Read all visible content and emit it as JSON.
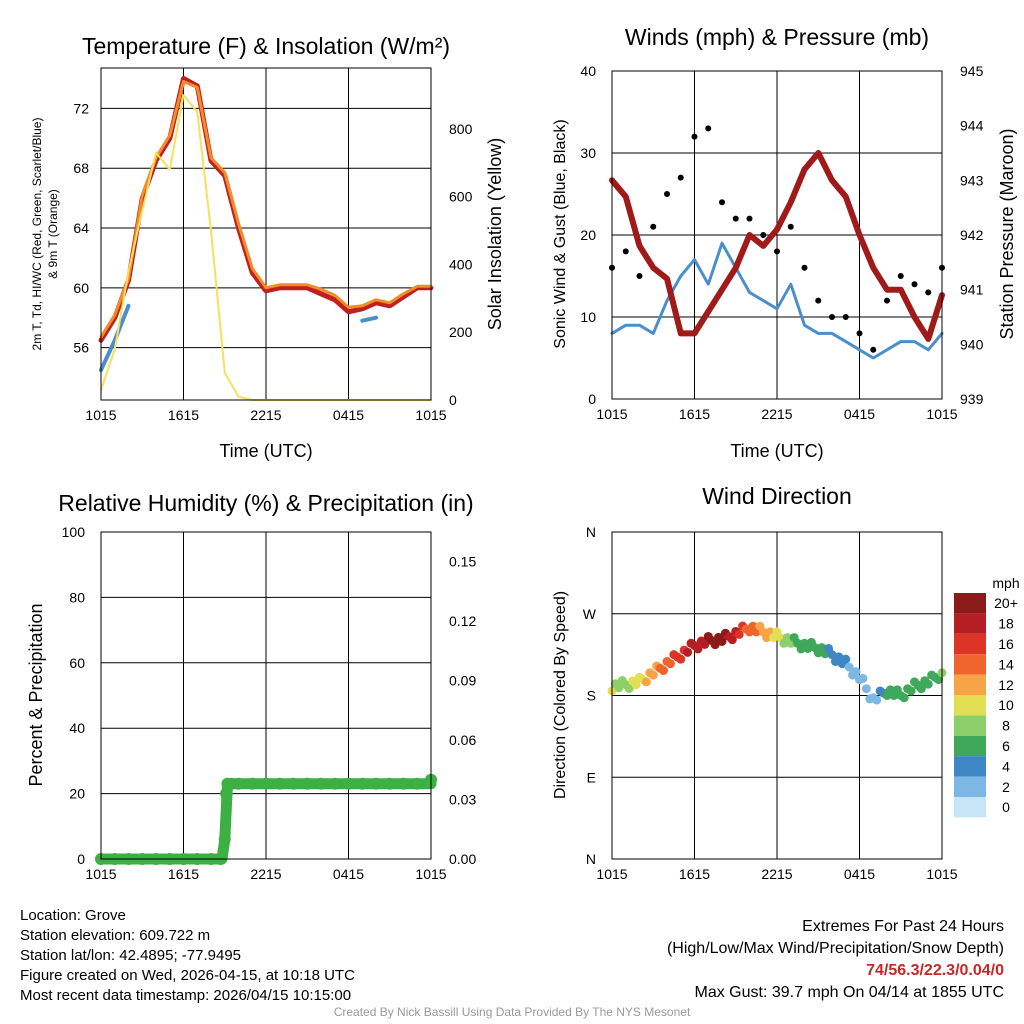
{
  "chart_data": [
    {
      "type": "line",
      "title": "Temperature (F) & Insolation (W/m²)",
      "xlabel": "Time (UTC)",
      "ylabel": "2m T, Td, HI/WC (Red, Green, Scarlet/Blue) & 9m T (Orange)",
      "ylabel_line1": "2m T, Td, HI/WC (Red, Green, Scarlet/Blue)",
      "ylabel_line2": "& 9m T (Orange)",
      "y2label": "Solar Insolation (Yellow)",
      "xticks": [
        "1015",
        "1615",
        "2215",
        "0415",
        "1015"
      ],
      "ylim": [
        52.5,
        74.7
      ],
      "yticks": [
        56,
        60,
        64,
        68,
        72
      ],
      "y2lim": [
        0,
        980
      ],
      "y2ticks": [
        0,
        200,
        400,
        600,
        800
      ],
      "x_hours": [
        0,
        1,
        2,
        3,
        4,
        5,
        6,
        7,
        8,
        9,
        10,
        11,
        12,
        13,
        14,
        15,
        16,
        17,
        18,
        19,
        20,
        21,
        22,
        23,
        24
      ],
      "series": [
        {
          "name": "2m Temperature",
          "color": "#c0201f",
          "values": [
            56.5,
            58.0,
            60.5,
            66.0,
            68.5,
            70.0,
            74.0,
            73.5,
            68.5,
            67.5,
            64.0,
            61.0,
            59.8,
            60.0,
            60.0,
            60.0,
            59.6,
            59.2,
            58.4,
            58.6,
            59.0,
            58.8,
            59.4,
            60.0,
            60.0
          ]
        },
        {
          "name": "9m Temperature",
          "color": "#f28c28",
          "values": [
            56.7,
            58.2,
            60.6,
            66.2,
            68.7,
            70.2,
            73.8,
            73.4,
            68.7,
            67.7,
            64.3,
            61.3,
            60.0,
            60.2,
            60.2,
            60.2,
            59.9,
            59.5,
            58.7,
            58.8,
            59.2,
            59.0,
            59.6,
            60.1,
            60.1
          ]
        },
        {
          "name": "Wind Chill",
          "color": "#4a8fcb",
          "values": [
            54.5,
            56.5,
            58.8,
            null,
            null,
            null,
            null,
            null,
            null,
            null,
            null,
            null,
            null,
            null,
            null,
            null,
            null,
            null,
            null,
            57.8,
            58.0,
            null,
            null,
            null,
            null
          ]
        },
        {
          "name": "Solar Insolation",
          "color": "#f7e05e",
          "axis": "y2",
          "values": [
            30,
            150,
            380,
            560,
            730,
            680,
            900,
            850,
            500,
            80,
            10,
            0,
            0,
            0,
            0,
            0,
            0,
            0,
            0,
            0,
            0,
            0,
            0,
            0,
            0
          ]
        }
      ]
    },
    {
      "type": "line",
      "title": "Winds (mph) & Pressure (mb)",
      "xlabel": "Time (UTC)",
      "ylabel": "Sonic Wind & Gust (Blue, Black)",
      "y2label": "Station Pressure (Maroon)",
      "xticks": [
        "1015",
        "1615",
        "2215",
        "0415",
        "1015"
      ],
      "ylim": [
        0,
        40
      ],
      "yticks": [
        0,
        10,
        20,
        30,
        40
      ],
      "y2lim": [
        939,
        945
      ],
      "y2ticks": [
        939,
        940,
        941,
        942,
        943,
        944,
        945
      ],
      "x_hours": [
        0,
        1,
        2,
        3,
        4,
        5,
        6,
        7,
        8,
        9,
        10,
        11,
        12,
        13,
        14,
        15,
        16,
        17,
        18,
        19,
        20,
        21,
        22,
        23,
        24
      ],
      "series": [
        {
          "name": "Sonic Wind",
          "color": "#4a8fcb",
          "values": [
            8,
            9,
            9,
            8,
            12,
            15,
            17,
            14,
            19,
            16,
            13,
            12,
            11,
            14,
            9,
            8,
            8,
            7,
            6,
            5,
            6,
            7,
            7,
            6,
            8
          ]
        },
        {
          "name": "Gust",
          "color": "#000000",
          "values": [
            16,
            18,
            15,
            21,
            25,
            27,
            32,
            33,
            24,
            22,
            22,
            20,
            18,
            21,
            16,
            12,
            10,
            10,
            8,
            6,
            12,
            15,
            14,
            13,
            16
          ]
        },
        {
          "name": "Station Pressure",
          "color": "#a01a1a",
          "axis": "y2",
          "values": [
            943.0,
            942.7,
            941.8,
            941.4,
            941.2,
            940.2,
            940.2,
            940.6,
            941.0,
            941.4,
            942.0,
            941.8,
            942.1,
            942.6,
            943.2,
            943.5,
            943.0,
            942.7,
            942.0,
            941.4,
            941.0,
            941.0,
            940.5,
            940.1,
            940.9
          ]
        }
      ]
    },
    {
      "type": "scatter",
      "title": "Relative Humidity (%) & Precipitation (in)",
      "xlabel": "",
      "ylabel": "Percent & Precipitation",
      "xticks": [
        "1015",
        "1615",
        "2215",
        "0415",
        "1015"
      ],
      "ylim": [
        0,
        100
      ],
      "yticks": [
        0,
        20,
        40,
        60,
        80,
        100
      ],
      "y2lim": [
        0,
        0.165
      ],
      "y2ticks": [
        "0.00",
        "0.03",
        "0.06",
        "0.09",
        "0.12",
        "0.15"
      ],
      "series": [
        {
          "name": "Precipitation",
          "color": "#3cb043",
          "axis": "y2",
          "x_hours": [
            0,
            1,
            2,
            3,
            4,
            5,
            6,
            7,
            8,
            8.7,
            9.0,
            9.1,
            9.2,
            9.5,
            10,
            11,
            12,
            13,
            14,
            15,
            16,
            17,
            18,
            19,
            20,
            21,
            22,
            23,
            24
          ],
          "values": [
            0,
            0,
            0,
            0,
            0,
            0,
            0,
            0,
            0,
            0,
            0.01,
            0.033,
            0.038,
            0.038,
            0.038,
            0.038,
            0.038,
            0.038,
            0.038,
            0.038,
            0.038,
            0.038,
            0.038,
            0.038,
            0.038,
            0.038,
            0.038,
            0.038,
            0.04
          ]
        }
      ]
    },
    {
      "type": "scatter",
      "title": "Wind Direction",
      "xlabel": "",
      "ylabel": "Direction (Colored By Speed)",
      "xticks": [
        "1015",
        "1615",
        "2215",
        "0415",
        "1015"
      ],
      "yticks": [
        "N",
        "E",
        "S",
        "W",
        "N"
      ],
      "ylim_deg": [
        0,
        360
      ],
      "legend_title": "mph",
      "legend_labels": [
        "20+",
        "18",
        "16",
        "14",
        "12",
        "10",
        "8",
        "6",
        "4",
        "2",
        "0"
      ],
      "legend_colors": [
        "#8b1a1a",
        "#b51e23",
        "#dc3527",
        "#f0642d",
        "#f7a446",
        "#e3df54",
        "#8ccf6b",
        "#3fa85a",
        "#3e86c4",
        "#7db8e4",
        "#c6e6f7"
      ],
      "x_hours": [
        0,
        1,
        2,
        3,
        4,
        5,
        6,
        7,
        8,
        9,
        10,
        11,
        12,
        13,
        14,
        15,
        16,
        17,
        18,
        19,
        20,
        21,
        22,
        23,
        24
      ],
      "values_deg": [
        190,
        192,
        195,
        205,
        215,
        225,
        235,
        240,
        242,
        248,
        255,
        250,
        245,
        240,
        235,
        232,
        225,
        215,
        200,
        175,
        185,
        180,
        190,
        195,
        205
      ],
      "speeds_mph": [
        10,
        9,
        11,
        13,
        15,
        17,
        19,
        20,
        21,
        18,
        15,
        13,
        11,
        8,
        7,
        7,
        5,
        4,
        3,
        3,
        6,
        7,
        7,
        6,
        8
      ]
    }
  ],
  "footer": {
    "location": "Location: Grove",
    "elevation": "Station elevation: 609.722 m",
    "latlon": "Station lat/lon: 42.4895; -77.9495",
    "created": "Figure created on Wed, 2026-04-15, at 10:18 UTC",
    "recent": "Most recent data timestamp: 2026/04/15 10:15:00",
    "extremes_title": "Extremes For Past 24 Hours",
    "extremes_subtitle": "(High/Low/Max Wind/Precipitation/Snow Depth)",
    "extremes_values": "74/56.3/22.3/0.04/0",
    "max_gust": "Max Gust: 39.7 mph On 04/14 at 1855 UTC",
    "credit": "Created By Nick Bassill Using Data Provided By The NYS Mesonet"
  }
}
